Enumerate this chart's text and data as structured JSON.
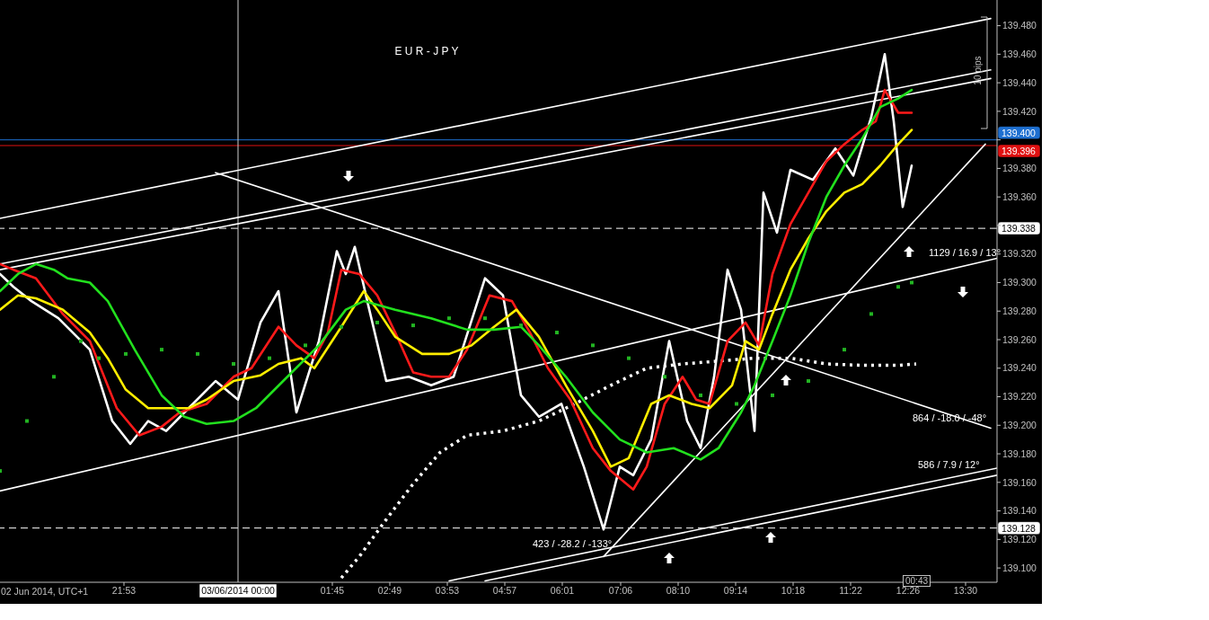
{
  "chart_data": {
    "type": "line",
    "title": "E U R - J P Y",
    "xlim": [
      "2014-06-02T19:35",
      "2014-06-03T14:05"
    ],
    "ylim": [
      139.09,
      139.498
    ],
    "xticks": [
      {
        "value": "2014-06-02T21:53",
        "label": "21:53"
      },
      {
        "value": "2014-06-03T01:45",
        "label": "01:45"
      },
      {
        "value": "2014-06-03T02:49",
        "label": "02:49"
      },
      {
        "value": "2014-06-03T03:53",
        "label": "03:53"
      },
      {
        "value": "2014-06-03T04:57",
        "label": "04:57"
      },
      {
        "value": "2014-06-03T06:01",
        "label": "06:01"
      },
      {
        "value": "2014-06-03T07:06",
        "label": "07:06"
      },
      {
        "value": "2014-06-03T08:10",
        "label": "08:10"
      },
      {
        "value": "2014-06-03T09:14",
        "label": "09:14"
      },
      {
        "value": "2014-06-03T10:18",
        "label": "10:18"
      },
      {
        "value": "2014-06-03T11:22",
        "label": "11:22"
      },
      {
        "value": "2014-06-03T12:26",
        "label": "12:26"
      },
      {
        "value": "2014-06-03T13:30",
        "label": "13:30"
      }
    ],
    "yticks": [
      {
        "value": 139.1,
        "label": "139.100"
      },
      {
        "value": 139.12,
        "label": "139.120"
      },
      {
        "value": 139.14,
        "label": "139.140"
      },
      {
        "value": 139.16,
        "label": "139.160"
      },
      {
        "value": 139.18,
        "label": "139.180"
      },
      {
        "value": 139.2,
        "label": "139.200"
      },
      {
        "value": 139.22,
        "label": "139.220"
      },
      {
        "value": 139.24,
        "label": "139.240"
      },
      {
        "value": 139.26,
        "label": "139.260"
      },
      {
        "value": 139.28,
        "label": "139.280"
      },
      {
        "value": 139.3,
        "label": "139.300"
      },
      {
        "value": 139.32,
        "label": "139.320"
      },
      {
        "value": 139.34,
        "label": null
      },
      {
        "value": 139.36,
        "label": "139.360"
      },
      {
        "value": 139.38,
        "label": "139.380"
      },
      {
        "value": 139.4,
        "label": null
      },
      {
        "value": 139.42,
        "label": "139.420"
      },
      {
        "value": 139.44,
        "label": "139.440"
      },
      {
        "value": 139.46,
        "label": "139.460"
      },
      {
        "value": 139.48,
        "label": "139.480"
      }
    ],
    "grid": false,
    "series": [
      {
        "type": "scatter",
        "color": "#22b422",
        "marker": "square",
        "x": [
          "2014-06-02T19:35",
          "2014-06-02T20:05",
          "2014-06-02T20:35",
          "2014-06-02T21:05",
          "2014-06-02T21:25",
          "2014-06-02T21:55",
          "2014-06-02T22:35",
          "2014-06-02T23:15",
          "2014-06-02T23:55",
          "2014-06-03T00:35",
          "2014-06-03T01:15",
          "2014-06-03T01:55",
          "2014-06-03T02:35",
          "2014-06-03T03:15",
          "2014-06-03T03:55",
          "2014-06-03T04:35",
          "2014-06-03T05:15",
          "2014-06-03T05:55",
          "2014-06-03T06:35",
          "2014-06-03T07:15",
          "2014-06-03T07:55",
          "2014-06-03T08:35",
          "2014-06-03T09:15",
          "2014-06-03T09:55",
          "2014-06-03T10:35",
          "2014-06-03T11:15",
          "2014-06-03T11:45",
          "2014-06-03T12:15",
          "2014-06-03T12:30"
        ],
        "values": [
          139.168,
          139.203,
          139.234,
          139.259,
          139.247,
          139.25,
          139.253,
          139.25,
          139.243,
          139.247,
          139.256,
          139.269,
          139.272,
          139.27,
          139.275,
          139.275,
          139.27,
          139.265,
          139.256,
          139.247,
          139.234,
          139.221,
          139.215,
          139.221,
          139.231,
          139.253,
          139.278,
          139.297,
          139.3
        ]
      },
      {
        "color": "#ffffff",
        "line_style": "dotted",
        "x": [
          "2014-06-03T01:55",
          "2014-06-03T02:15",
          "2014-06-03T02:45",
          "2014-06-03T03:15",
          "2014-06-03T03:45",
          "2014-06-03T04:15",
          "2014-06-03T04:55",
          "2014-06-03T05:35",
          "2014-06-03T06:15",
          "2014-06-03T06:55",
          "2014-06-03T07:35",
          "2014-06-03T08:15",
          "2014-06-03T08:55",
          "2014-06-03T09:35",
          "2014-06-03T10:15",
          "2014-06-03T10:55",
          "2014-06-03T11:35",
          "2014-06-03T12:15",
          "2014-06-03T12:35"
        ],
        "values": [
          139.093,
          139.108,
          139.134,
          139.159,
          139.181,
          139.193,
          139.196,
          139.203,
          139.215,
          139.228,
          139.24,
          139.243,
          139.245,
          139.247,
          139.247,
          139.243,
          139.242,
          139.242,
          139.243
        ]
      },
      {
        "color": "#ffffff",
        "x": [
          "2014-06-02T19:35",
          "2014-06-03T13:58"
        ],
        "values": [
          139.345,
          139.485
        ]
      },
      {
        "color": "#ffffff",
        "x": [
          "2014-06-02T19:35",
          "2014-06-03T13:58"
        ],
        "values": [
          139.313,
          139.449
        ]
      },
      {
        "color": "#ffffff",
        "x": [
          "2014-06-02T19:35",
          "2014-06-03T13:58"
        ],
        "values": [
          139.309,
          139.443
        ]
      },
      {
        "color": "#ffffff",
        "x": [
          "2014-06-02T23:35",
          "2014-06-03T13:58"
        ],
        "values": [
          139.377,
          139.198
        ]
      },
      {
        "color": "#ffffff",
        "x": [
          "2014-06-02T19:35",
          "2014-06-03T14:05"
        ],
        "values": [
          139.154,
          139.317
        ]
      },
      {
        "color": "#ffffff",
        "x": [
          "2014-06-03T06:47",
          "2014-06-03T13:52"
        ],
        "values": [
          139.108,
          139.397
        ]
      },
      {
        "color": "#ffffff",
        "x": [
          "2014-06-03T03:55",
          "2014-06-03T14:05"
        ],
        "values": [
          139.091,
          139.17
        ]
      },
      {
        "color": "#ffffff",
        "x": [
          "2014-06-03T04:35",
          "2014-06-03T14:05"
        ],
        "values": [
          139.091,
          139.165
        ]
      },
      {
        "color": "#ffffff",
        "x": [
          "2014-06-02T19:35",
          "2014-06-02T19:50",
          "2014-06-02T20:10",
          "2014-06-02T20:40",
          "2014-06-02T21:15",
          "2014-06-02T21:40",
          "2014-06-02T22:00",
          "2014-06-02T22:20",
          "2014-06-02T22:40",
          "2014-06-02T23:05",
          "2014-06-02T23:35",
          "2014-06-03T00:00",
          "2014-06-03T00:25",
          "2014-06-03T00:45",
          "2014-06-03T01:05",
          "2014-06-03T01:30",
          "2014-06-03T01:50",
          "2014-06-03T02:00",
          "2014-06-03T02:10",
          "2014-06-03T02:25",
          "2014-06-03T02:45",
          "2014-06-03T03:10",
          "2014-06-03T03:35",
          "2014-06-03T04:00",
          "2014-06-03T04:35",
          "2014-06-03T04:55",
          "2014-06-03T05:15",
          "2014-06-03T05:35",
          "2014-06-03T06:00",
          "2014-06-03T06:25",
          "2014-06-03T06:47",
          "2014-06-03T07:05",
          "2014-06-03T07:20",
          "2014-06-03T07:40",
          "2014-06-03T08:00",
          "2014-06-03T08:20",
          "2014-06-03T08:35",
          "2014-06-03T08:50",
          "2014-06-03T09:05",
          "2014-06-03T09:20",
          "2014-06-03T09:35",
          "2014-06-03T09:45",
          "2014-06-03T10:00",
          "2014-06-03T10:15",
          "2014-06-03T10:40",
          "2014-06-03T11:05",
          "2014-06-03T11:25",
          "2014-06-03T11:45",
          "2014-06-03T12:00",
          "2014-06-03T12:10",
          "2014-06-03T12:20",
          "2014-06-03T12:30"
        ],
        "values": [
          139.306,
          139.297,
          139.287,
          139.275,
          139.253,
          139.203,
          139.187,
          139.203,
          139.196,
          139.212,
          139.231,
          139.218,
          139.272,
          139.294,
          139.209,
          139.259,
          139.322,
          139.306,
          139.325,
          139.284,
          139.231,
          139.234,
          139.228,
          139.234,
          139.303,
          139.291,
          139.221,
          139.206,
          139.215,
          139.171,
          139.127,
          139.171,
          139.165,
          139.19,
          139.259,
          139.203,
          139.184,
          139.234,
          139.309,
          139.281,
          139.196,
          139.363,
          139.335,
          139.379,
          139.372,
          139.394,
          139.375,
          139.416,
          139.46,
          139.413,
          139.353,
          139.382
        ]
      },
      {
        "color": "#ff1a1a",
        "x": [
          "2014-06-02T19:35",
          "2014-06-02T19:50",
          "2014-06-02T20:15",
          "2014-06-02T20:45",
          "2014-06-02T21:15",
          "2014-06-02T21:45",
          "2014-06-02T22:10",
          "2014-06-02T22:35",
          "2014-06-02T22:55",
          "2014-06-02T23:25",
          "2014-06-02T23:55",
          "2014-06-03T00:15",
          "2014-06-03T00:45",
          "2014-06-03T01:05",
          "2014-06-03T01:25",
          "2014-06-03T01:40",
          "2014-06-03T01:55",
          "2014-06-03T02:15",
          "2014-06-03T02:35",
          "2014-06-03T02:55",
          "2014-06-03T03:15",
          "2014-06-03T03:35",
          "2014-06-03T03:55",
          "2014-06-03T04:15",
          "2014-06-03T04:40",
          "2014-06-03T05:05",
          "2014-06-03T05:25",
          "2014-06-03T05:45",
          "2014-06-03T06:10",
          "2014-06-03T06:35",
          "2014-06-03T06:55",
          "2014-06-03T07:20",
          "2014-06-03T07:35",
          "2014-06-03T07:55",
          "2014-06-03T08:15",
          "2014-06-03T08:30",
          "2014-06-03T08:45",
          "2014-06-03T09:05",
          "2014-06-03T09:25",
          "2014-06-03T09:40",
          "2014-06-03T09:55",
          "2014-06-03T10:15",
          "2014-06-03T10:35",
          "2014-06-03T10:55",
          "2014-06-03T11:15",
          "2014-06-03T11:35",
          "2014-06-03T11:50",
          "2014-06-03T12:00",
          "2014-06-03T12:15",
          "2014-06-03T12:30"
        ],
        "values": [
          139.313,
          139.309,
          139.303,
          139.278,
          139.259,
          139.212,
          139.193,
          139.199,
          139.209,
          139.215,
          139.234,
          139.24,
          139.269,
          139.256,
          139.247,
          139.265,
          139.309,
          139.306,
          139.291,
          139.265,
          139.237,
          139.234,
          139.234,
          139.253,
          139.291,
          139.287,
          139.265,
          139.24,
          139.218,
          139.184,
          139.168,
          139.155,
          139.171,
          139.215,
          139.234,
          139.218,
          139.215,
          139.259,
          139.272,
          139.256,
          139.306,
          139.341,
          139.363,
          139.385,
          139.397,
          139.407,
          139.413,
          139.435,
          139.419,
          139.419
        ]
      },
      {
        "color": "#ffee00",
        "x": [
          "2014-06-02T19:35",
          "2014-06-02T19:55",
          "2014-06-02T20:15",
          "2014-06-02T20:45",
          "2014-06-02T21:15",
          "2014-06-02T21:35",
          "2014-06-02T21:55",
          "2014-06-02T22:20",
          "2014-06-02T22:45",
          "2014-06-02T23:05",
          "2014-06-02T23:25",
          "2014-06-02T23:55",
          "2014-06-03T00:25",
          "2014-06-03T00:45",
          "2014-06-03T01:10",
          "2014-06-03T01:25",
          "2014-06-03T01:55",
          "2014-06-03T02:20",
          "2014-06-03T02:35",
          "2014-06-03T02:55",
          "2014-06-03T03:25",
          "2014-06-03T03:55",
          "2014-06-03T04:20",
          "2014-06-03T04:45",
          "2014-06-03T05:10",
          "2014-06-03T05:35",
          "2014-06-03T06:05",
          "2014-06-03T06:35",
          "2014-06-03T06:55",
          "2014-06-03T07:15",
          "2014-06-03T07:40",
          "2014-06-03T08:00",
          "2014-06-03T08:25",
          "2014-06-03T08:45",
          "2014-06-03T09:10",
          "2014-06-03T09:25",
          "2014-06-03T09:40",
          "2014-06-03T09:55",
          "2014-06-03T10:15",
          "2014-06-03T10:35",
          "2014-06-03T10:55",
          "2014-06-03T11:15",
          "2014-06-03T11:35",
          "2014-06-03T11:55",
          "2014-06-03T12:15",
          "2014-06-03T12:30"
        ],
        "values": [
          139.281,
          139.291,
          139.289,
          139.281,
          139.265,
          139.247,
          139.225,
          139.212,
          139.212,
          139.212,
          139.218,
          139.231,
          139.235,
          139.243,
          139.247,
          139.24,
          139.269,
          139.294,
          139.281,
          139.262,
          139.25,
          139.25,
          139.256,
          139.269,
          139.281,
          139.262,
          139.228,
          139.196,
          139.171,
          139.177,
          139.215,
          139.221,
          139.215,
          139.212,
          139.228,
          139.259,
          139.253,
          139.278,
          139.309,
          139.331,
          139.35,
          139.363,
          139.369,
          139.382,
          139.397,
          139.407
        ]
      },
      {
        "color": "#22e01e",
        "x": [
          "2014-06-02T19:35",
          "2014-06-02T19:55",
          "2014-06-02T20:15",
          "2014-06-02T20:35",
          "2014-06-02T20:50",
          "2014-06-02T21:15",
          "2014-06-02T21:35",
          "2014-06-02T22:05",
          "2014-06-02T22:35",
          "2014-06-02T23:00",
          "2014-06-02T23:25",
          "2014-06-02T23:55",
          "2014-06-03T00:20",
          "2014-06-03T00:55",
          "2014-06-03T01:30",
          "2014-06-03T02:00",
          "2014-06-03T02:20",
          "2014-06-03T02:55",
          "2014-06-03T03:35",
          "2014-06-03T04:15",
          "2014-06-03T04:45",
          "2014-06-03T05:15",
          "2014-06-03T05:35",
          "2014-06-03T06:05",
          "2014-06-03T06:35",
          "2014-06-03T07:05",
          "2014-06-03T07:35",
          "2014-06-03T08:05",
          "2014-06-03T08:35",
          "2014-06-03T08:55",
          "2014-06-03T09:20",
          "2014-06-03T09:35",
          "2014-06-03T09:55",
          "2014-06-03T10:15",
          "2014-06-03T10:35",
          "2014-06-03T10:55",
          "2014-06-03T11:15",
          "2014-06-03T11:35",
          "2014-06-03T11:55",
          "2014-06-03T12:15",
          "2014-06-03T12:30"
        ],
        "values": [
          139.294,
          139.306,
          139.313,
          139.309,
          139.303,
          139.3,
          139.287,
          139.253,
          139.221,
          139.206,
          139.201,
          139.203,
          139.212,
          139.234,
          139.256,
          139.281,
          139.287,
          139.281,
          139.275,
          139.267,
          139.267,
          139.269,
          139.256,
          139.234,
          139.209,
          139.19,
          139.181,
          139.184,
          139.176,
          139.184,
          139.209,
          139.228,
          139.259,
          139.291,
          139.328,
          139.36,
          139.382,
          139.401,
          139.423,
          139.429,
          139.435
        ]
      }
    ],
    "ref_lines": [
      {
        "axis": "y",
        "value": 139.4,
        "label": "139.400",
        "color": "#1e6fd0"
      },
      {
        "axis": "y",
        "value": 139.396,
        "label": "139.396",
        "color": "#e01010"
      },
      {
        "axis": "y",
        "value": 139.338,
        "label": "139.338",
        "color": "#ffffff",
        "line_style": "dashed"
      },
      {
        "axis": "y",
        "value": 139.128,
        "label": "139.128",
        "color": "#ffffff",
        "line_style": "dashed"
      },
      {
        "axis": "x",
        "value": "2014-06-03T00:00",
        "label": "03/06/2014 00:00",
        "color": "#d0d0d0"
      }
    ],
    "annotations": [
      "1129 / 16.9 / 13°",
      "864 / -18.0 / -48°",
      "586 / 7.9 / 12°",
      "423 / -28.2 / -133°",
      "10 pips",
      "00:43",
      "02 Jun 2014, UTC+1"
    ]
  }
}
